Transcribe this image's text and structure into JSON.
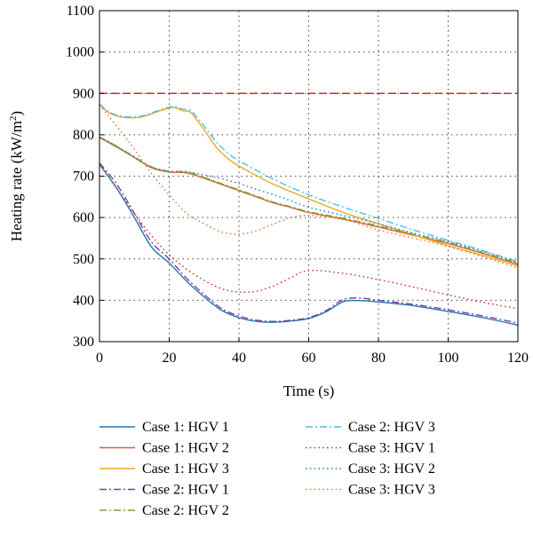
{
  "chart_data": {
    "type": "line",
    "title": "",
    "xlabel": "Time (s)",
    "ylabel_main": "Heating rate (kW/m",
    "ylabel_sup": "2",
    "ylabel_tail": ")",
    "xlim": [
      0,
      120
    ],
    "ylim": [
      300,
      1100
    ],
    "xticks": [
      0,
      20,
      40,
      60,
      80,
      100,
      120
    ],
    "yticks": [
      300,
      400,
      500,
      600,
      700,
      800,
      900,
      1000,
      1100
    ],
    "grid": true,
    "legend_position": "bottom",
    "reference_line": {
      "y": 900,
      "color": "#d62728",
      "dash": "dashed"
    },
    "series": [
      {
        "name": "Case 1: HGV 1",
        "color": "#1f77b4",
        "dash": "solid",
        "x": [
          0,
          5,
          10,
          15,
          20,
          25,
          30,
          35,
          40,
          45,
          50,
          55,
          60,
          65,
          70,
          75,
          80,
          90,
          100,
          110,
          120
        ],
        "y": [
          728,
          670,
          600,
          528,
          490,
          446,
          408,
          376,
          358,
          349,
          347,
          350,
          356,
          372,
          397,
          399,
          396,
          387,
          373,
          358,
          340
        ]
      },
      {
        "name": "Case 1: HGV 2",
        "color": "#d95f3b",
        "dash": "solid",
        "x": [
          0,
          5,
          10,
          15,
          20,
          25,
          30,
          35,
          40,
          45,
          50,
          55,
          60,
          70,
          80,
          90,
          100,
          110,
          120
        ],
        "y": [
          793,
          770,
          745,
          720,
          710,
          708,
          695,
          680,
          665,
          650,
          635,
          624,
          612,
          596,
          577,
          557,
          537,
          513,
          487
        ]
      },
      {
        "name": "Case 1: HGV 3",
        "color": "#f0a81e",
        "dash": "solid",
        "x": [
          0,
          3,
          7,
          12,
          17,
          21,
          24,
          26,
          28,
          31,
          34,
          38,
          42,
          50,
          60,
          70,
          80,
          90,
          100,
          110,
          120
        ],
        "y": [
          872,
          852,
          842,
          843,
          857,
          866,
          858,
          855,
          835,
          800,
          765,
          735,
          715,
          680,
          645,
          612,
          585,
          558,
          532,
          508,
          483
        ]
      },
      {
        "name": "Case 2: HGV 1",
        "color": "#7b3fa0",
        "dash": "dashdot",
        "x": [
          0,
          5,
          10,
          15,
          20,
          25,
          30,
          35,
          40,
          45,
          50,
          55,
          60,
          65,
          70,
          75,
          80,
          90,
          100,
          110,
          120
        ],
        "y": [
          732,
          680,
          610,
          540,
          500,
          453,
          414,
          380,
          362,
          352,
          349,
          352,
          358,
          375,
          402,
          405,
          400,
          390,
          377,
          362,
          345
        ]
      },
      {
        "name": "Case 2: HGV 2",
        "color": "#77ac30",
        "dash": "dashdot",
        "x": [
          0,
          5,
          10,
          15,
          20,
          25,
          30,
          35,
          40,
          45,
          50,
          55,
          60,
          70,
          80,
          90,
          100,
          110,
          120
        ],
        "y": [
          795,
          772,
          747,
          722,
          712,
          710,
          697,
          682,
          667,
          652,
          637,
          626,
          614,
          598,
          580,
          560,
          540,
          515,
          490
        ]
      },
      {
        "name": "Case 2: HGV 3",
        "color": "#4dbeee",
        "dash": "dashdot",
        "x": [
          0,
          3,
          7,
          12,
          17,
          21,
          24,
          26,
          28,
          31,
          34,
          38,
          42,
          50,
          60,
          70,
          80,
          90,
          100,
          110,
          120
        ],
        "y": [
          874,
          854,
          844,
          845,
          859,
          868,
          862,
          859,
          842,
          810,
          778,
          748,
          728,
          692,
          655,
          625,
          598,
          570,
          545,
          520,
          493
        ]
      },
      {
        "name": "Case 3: HGV 1",
        "color": "#c0392b",
        "dash": "dot",
        "x": [
          0,
          5,
          10,
          15,
          20,
          25,
          30,
          35,
          40,
          45,
          50,
          55,
          60,
          70,
          80,
          90,
          100,
          110,
          120
        ],
        "y": [
          730,
          670,
          610,
          555,
          510,
          475,
          448,
          428,
          420,
          422,
          435,
          455,
          472,
          465,
          450,
          432,
          413,
          395,
          380
        ]
      },
      {
        "name": "Case 3: HGV 2",
        "color": "#2c7fb8",
        "dash": "dot",
        "x": [
          0,
          5,
          10,
          15,
          20,
          25,
          30,
          35,
          40,
          45,
          50,
          55,
          60,
          70,
          80,
          90,
          100,
          110,
          120
        ],
        "y": [
          795,
          772,
          745,
          722,
          712,
          711,
          703,
          694,
          682,
          668,
          655,
          640,
          625,
          605,
          585,
          562,
          542,
          518,
          492
        ]
      },
      {
        "name": "Case 3: HGV 3",
        "color": "#e8743b",
        "dash": "dot",
        "x": [
          0,
          5,
          10,
          15,
          20,
          25,
          30,
          35,
          40,
          45,
          50,
          55,
          60,
          70,
          80,
          90,
          100,
          110,
          120
        ],
        "y": [
          872,
          820,
          765,
          705,
          655,
          610,
          585,
          565,
          560,
          568,
          585,
          600,
          605,
          595,
          570,
          550,
          530,
          505,
          478
        ]
      }
    ]
  }
}
